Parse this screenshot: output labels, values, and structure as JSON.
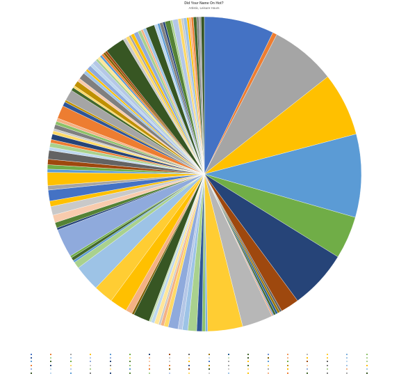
{
  "chart_data": {
    "type": "pie",
    "title": "Did Your Name On Hot?",
    "subtitle": "Artistic, Leisure Hours",
    "legend_position": "bottom",
    "slices": [
      {
        "value": 64,
        "color": "#4472c4"
      },
      {
        "value": 4,
        "color": "#ed7d31"
      },
      {
        "value": 60,
        "color": "#a5a5a5"
      },
      {
        "value": 58,
        "color": "#ffc000"
      },
      {
        "value": 76,
        "color": "#5b9bd5"
      },
      {
        "value": 39,
        "color": "#70ad47"
      },
      {
        "value": 54,
        "color": "#264478"
      },
      {
        "value": 17,
        "color": "#9e480e"
      },
      {
        "value": 2,
        "color": "#636363"
      },
      {
        "value": 2,
        "color": "#997300"
      },
      {
        "value": 2,
        "color": "#255e91"
      },
      {
        "value": 2,
        "color": "#43682b"
      },
      {
        "value": 1,
        "color": "#698ed0"
      },
      {
        "value": 1,
        "color": "#f1975a"
      },
      {
        "value": 28,
        "color": "#b7b7b7"
      },
      {
        "value": 32,
        "color": "#ffcd33"
      },
      {
        "value": 2,
        "color": "#7cafdd"
      },
      {
        "value": 3,
        "color": "#8cc168"
      },
      {
        "value": 5,
        "color": "#2f5597"
      },
      {
        "value": 8,
        "color": "#a9d18e"
      },
      {
        "value": 5,
        "color": "#9dc3e6"
      },
      {
        "value": 4,
        "color": "#b4c7e7"
      },
      {
        "value": 9,
        "color": "#8faadc"
      },
      {
        "value": 4,
        "color": "#ffd966"
      },
      {
        "value": 3,
        "color": "#f4b183"
      },
      {
        "value": 2,
        "color": "#c9c9c9"
      },
      {
        "value": 4,
        "color": "#ffe699"
      },
      {
        "value": 3,
        "color": "#bdd7ee"
      },
      {
        "value": 2,
        "color": "#c5e0b4"
      },
      {
        "value": 15,
        "color": "#375623"
      },
      {
        "value": 2,
        "color": "#7f6000"
      },
      {
        "value": 6,
        "color": "#f4b183"
      },
      {
        "value": 16,
        "color": "#ffc000"
      },
      {
        "value": 18,
        "color": "#ffcd33"
      },
      {
        "value": 24,
        "color": "#9dc3e6"
      },
      {
        "value": 6,
        "color": "#a9d18e"
      },
      {
        "value": 2,
        "color": "#5b9bd5"
      },
      {
        "value": 3,
        "color": "#43682b"
      },
      {
        "value": 2,
        "color": "#70ad47"
      },
      {
        "value": 26,
        "color": "#8faadc"
      },
      {
        "value": 2,
        "color": "#264478"
      },
      {
        "value": 5,
        "color": "#548235"
      },
      {
        "value": 7,
        "color": "#f8cbad"
      },
      {
        "value": 8,
        "color": "#c9c9c9"
      },
      {
        "value": 5,
        "color": "#ffc000"
      },
      {
        "value": 10,
        "color": "#4472c4"
      },
      {
        "value": 4,
        "color": "#a5a5a5"
      },
      {
        "value": 12,
        "color": "#ffc000"
      },
      {
        "value": 3,
        "color": "#5b9bd5"
      },
      {
        "value": 4,
        "color": "#70ad47"
      },
      {
        "value": 5,
        "color": "#9e480e"
      },
      {
        "value": 8,
        "color": "#636363"
      },
      {
        "value": 3,
        "color": "#bdd7ee"
      },
      {
        "value": 4,
        "color": "#a9d18e"
      },
      {
        "value": 3,
        "color": "#ed7d31"
      },
      {
        "value": 5,
        "color": "#264478"
      },
      {
        "value": 3,
        "color": "#ffd966"
      },
      {
        "value": 2,
        "color": "#c9c9c9"
      },
      {
        "value": 4,
        "color": "#7f7f7f"
      },
      {
        "value": 3,
        "color": "#8cc168"
      },
      {
        "value": 3,
        "color": "#f4b183"
      },
      {
        "value": 12,
        "color": "#ed7d31"
      },
      {
        "value": 4,
        "color": "#2f5597"
      },
      {
        "value": 2,
        "color": "#bf9000"
      },
      {
        "value": 10,
        "color": "#a5a5a5"
      },
      {
        "value": 3,
        "color": "#43682b"
      },
      {
        "value": 2,
        "color": "#ffd966"
      },
      {
        "value": 5,
        "color": "#bf9000"
      },
      {
        "value": 3,
        "color": "#f8cbad"
      },
      {
        "value": 6,
        "color": "#7f7f7f"
      },
      {
        "value": 3,
        "color": "#9dc3e6"
      },
      {
        "value": 2,
        "color": "#ffc000"
      },
      {
        "value": 4,
        "color": "#8faadc"
      },
      {
        "value": 3,
        "color": "#bdd7ee"
      },
      {
        "value": 4,
        "color": "#b4c7e7"
      },
      {
        "value": 2,
        "color": "#a9d18e"
      },
      {
        "value": 3,
        "color": "#ffe699"
      },
      {
        "value": 2,
        "color": "#5b9bd5"
      },
      {
        "value": 2,
        "color": "#ed7d31"
      },
      {
        "value": 2,
        "color": "#7f6000"
      },
      {
        "value": 2,
        "color": "#9e480e"
      },
      {
        "value": 18,
        "color": "#375623"
      },
      {
        "value": 3,
        "color": "#c9c9c9"
      },
      {
        "value": 3,
        "color": "#ffd966"
      },
      {
        "value": 2,
        "color": "#a5a5a5"
      },
      {
        "value": 3,
        "color": "#ffc000"
      },
      {
        "value": 4,
        "color": "#8faadc"
      },
      {
        "value": 3,
        "color": "#a9d18e"
      },
      {
        "value": 2,
        "color": "#f4b183"
      },
      {
        "value": 3,
        "color": "#9dc3e6"
      },
      {
        "value": 8,
        "color": "#375623"
      },
      {
        "value": 3,
        "color": "#bdd7ee"
      },
      {
        "value": 2,
        "color": "#5b9bd5"
      },
      {
        "value": 3,
        "color": "#7f7f7f"
      },
      {
        "value": 2,
        "color": "#264478"
      },
      {
        "value": 5,
        "color": "#548235"
      },
      {
        "value": 2,
        "color": "#a9d18e"
      },
      {
        "value": 5,
        "color": "#b4c7e7"
      },
      {
        "value": 3,
        "color": "#ffd966"
      },
      {
        "value": 2,
        "color": "#c9c9c9"
      },
      {
        "value": 3,
        "color": "#9dc3e6"
      },
      {
        "value": 2,
        "color": "#ffc000"
      },
      {
        "value": 2,
        "color": "#f4b183"
      },
      {
        "value": 2,
        "color": "#ed7d31"
      },
      {
        "value": 3,
        "color": "#43682b"
      },
      {
        "value": 2,
        "color": "#7f7f7f"
      },
      {
        "value": 2,
        "color": "#a5a5a5"
      },
      {
        "value": 3,
        "color": "#375623"
      }
    ]
  }
}
